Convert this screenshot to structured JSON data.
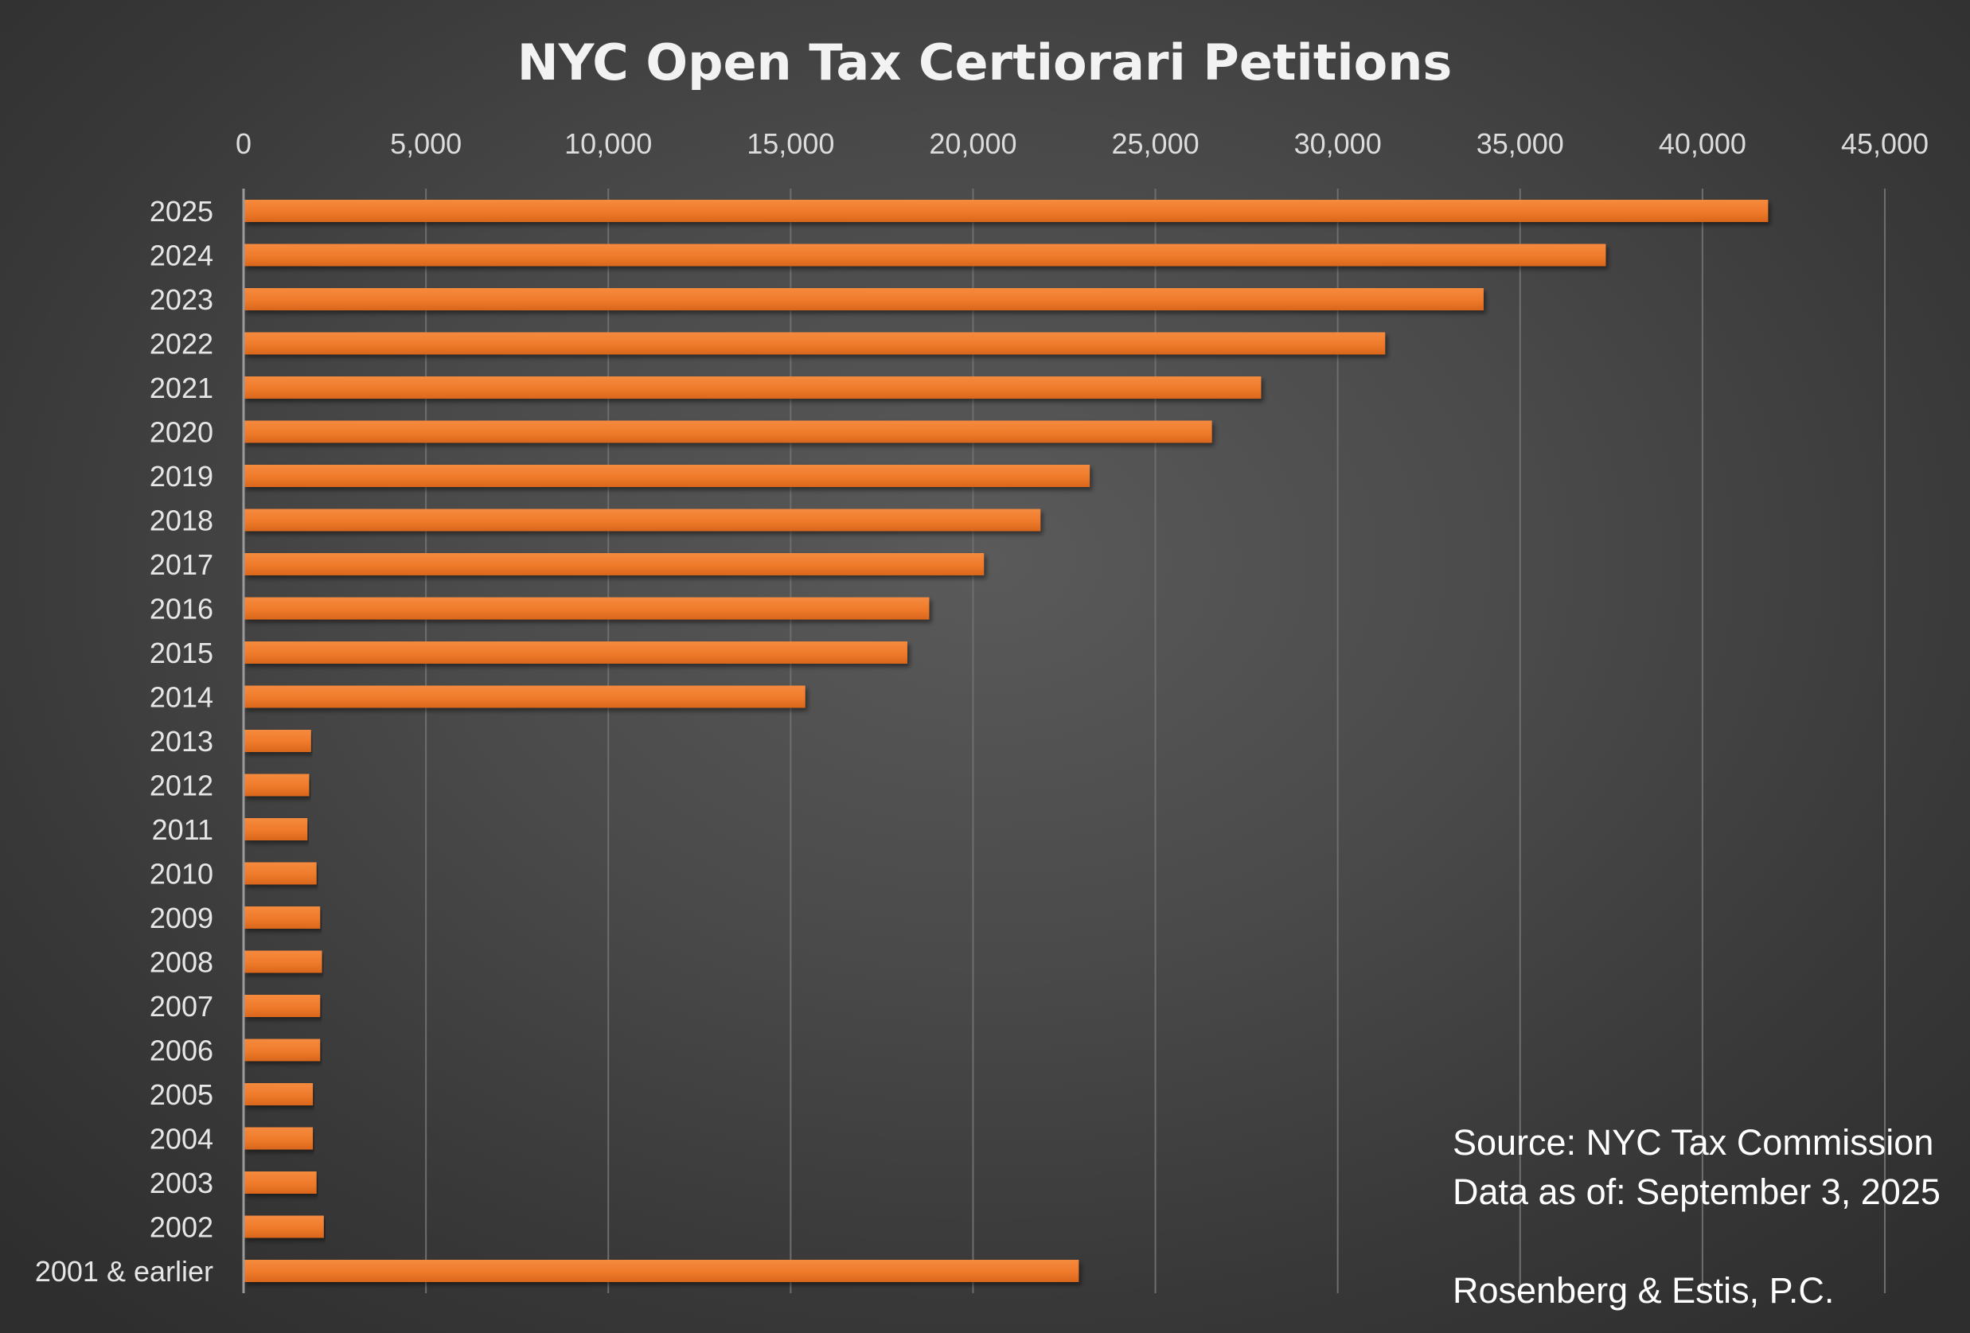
{
  "chart_data": {
    "type": "bar",
    "orientation": "horizontal",
    "title": "NYC Open Tax Certiorari Petitions",
    "xlabel": "",
    "ylabel": "",
    "xlim": [
      0,
      45000
    ],
    "x_ticks": [
      0,
      5000,
      10000,
      15000,
      20000,
      25000,
      30000,
      35000,
      40000,
      45000
    ],
    "x_tick_labels": [
      "0",
      "5,000",
      "10,000",
      "15,000",
      "20,000",
      "25,000",
      "30,000",
      "35,000",
      "40,000",
      "45,000"
    ],
    "x_axis_position": "top",
    "grid": true,
    "bar_color": "#f07b2e",
    "categories": [
      "2025",
      "2024",
      "2023",
      "2022",
      "2021",
      "2020",
      "2019",
      "2018",
      "2017",
      "2016",
      "2015",
      "2014",
      "2013",
      "2012",
      "2011",
      "2010",
      "2009",
      "2008",
      "2007",
      "2006",
      "2005",
      "2004",
      "2003",
      "2002",
      "2001 & earlier"
    ],
    "values": [
      41800,
      37350,
      34000,
      31300,
      27900,
      26550,
      23200,
      21850,
      20300,
      18800,
      18200,
      15400,
      1850,
      1800,
      1750,
      2000,
      2100,
      2150,
      2100,
      2100,
      1900,
      1900,
      2000,
      2200,
      22900
    ]
  },
  "annotations": {
    "source": "Source: NYC Tax Commission",
    "data_date": "Data as of: September 3, 2025",
    "firm": "Rosenberg & Estis, P.C."
  }
}
